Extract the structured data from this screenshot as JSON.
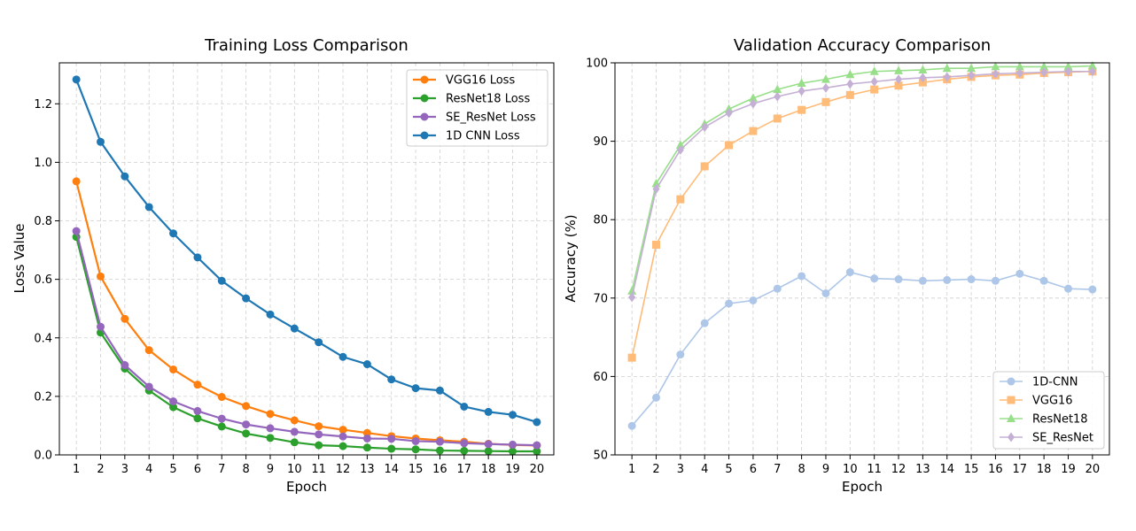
{
  "chart_data": [
    {
      "type": "line",
      "title": "Training Loss Comparison",
      "xlabel": "Epoch",
      "ylabel": "Loss Value",
      "x": [
        1,
        2,
        3,
        4,
        5,
        6,
        7,
        8,
        9,
        10,
        11,
        12,
        13,
        14,
        15,
        16,
        17,
        18,
        19,
        20
      ],
      "xlim": [
        0.3,
        20.7
      ],
      "ylim": [
        0,
        1.34
      ],
      "yticks": [
        0.0,
        0.2,
        0.4,
        0.6,
        0.8,
        1.0,
        1.2
      ],
      "ytick_labels": [
        "0.0",
        "0.2",
        "0.4",
        "0.6",
        "0.8",
        "1.0",
        "1.2"
      ],
      "grid": true,
      "legend_position": "top-right",
      "series": [
        {
          "name": "VGG16 Loss",
          "color": "#ff7f0e",
          "marker": "circle",
          "values": [
            0.935,
            0.61,
            0.465,
            0.358,
            0.292,
            0.24,
            0.198,
            0.167,
            0.14,
            0.118,
            0.098,
            0.086,
            0.075,
            0.064,
            0.056,
            0.05,
            0.045,
            0.038,
            0.034,
            0.032
          ]
        },
        {
          "name": "ResNet18 Loss",
          "color": "#2ca02c",
          "marker": "circle",
          "values": [
            0.745,
            0.418,
            0.295,
            0.22,
            0.163,
            0.125,
            0.097,
            0.073,
            0.058,
            0.043,
            0.033,
            0.03,
            0.025,
            0.021,
            0.019,
            0.015,
            0.014,
            0.013,
            0.012,
            0.012
          ]
        },
        {
          "name": "SE_ResNet Loss",
          "color": "#9467bd",
          "marker": "circle",
          "values": [
            0.765,
            0.438,
            0.307,
            0.233,
            0.183,
            0.15,
            0.124,
            0.104,
            0.091,
            0.079,
            0.07,
            0.063,
            0.056,
            0.055,
            0.047,
            0.045,
            0.04,
            0.037,
            0.035,
            0.033
          ]
        },
        {
          "name": "1D CNN Loss",
          "color": "#1f77b4",
          "marker": "circle",
          "values": [
            1.283,
            1.07,
            0.952,
            0.847,
            0.757,
            0.675,
            0.595,
            0.535,
            0.48,
            0.432,
            0.385,
            0.335,
            0.31,
            0.258,
            0.228,
            0.22,
            0.165,
            0.147,
            0.137,
            0.112
          ]
        }
      ]
    },
    {
      "type": "line",
      "title": "Validation Accuracy Comparison",
      "xlabel": "Epoch",
      "ylabel": "Accuracy (%)",
      "x": [
        1,
        2,
        3,
        4,
        5,
        6,
        7,
        8,
        9,
        10,
        11,
        12,
        13,
        14,
        15,
        16,
        17,
        18,
        19,
        20
      ],
      "xlim": [
        0.3,
        20.7
      ],
      "ylim": [
        50,
        100
      ],
      "yticks": [
        50,
        60,
        70,
        80,
        90,
        100
      ],
      "ytick_labels": [
        "50",
        "60",
        "70",
        "80",
        "90",
        "100"
      ],
      "grid": true,
      "legend_position": "bottom-right",
      "series": [
        {
          "name": "1D-CNN",
          "color": "#aec7e8",
          "marker": "circle",
          "values": [
            53.7,
            57.3,
            62.8,
            66.8,
            69.3,
            69.7,
            71.2,
            72.8,
            70.6,
            73.3,
            72.5,
            72.4,
            72.2,
            72.3,
            72.4,
            72.2,
            73.1,
            72.2,
            71.2,
            71.1
          ]
        },
        {
          "name": "VGG16",
          "color": "#ffbb78",
          "marker": "square",
          "values": [
            62.4,
            76.8,
            82.6,
            86.8,
            89.5,
            91.3,
            92.9,
            94.0,
            95.0,
            95.9,
            96.6,
            97.1,
            97.5,
            97.9,
            98.2,
            98.4,
            98.5,
            98.7,
            98.8,
            98.9
          ]
        },
        {
          "name": "ResNet18",
          "color": "#98df8a",
          "marker": "triangle",
          "values": [
            70.9,
            84.6,
            89.5,
            92.2,
            94.1,
            95.5,
            96.6,
            97.4,
            97.9,
            98.5,
            98.9,
            99.0,
            99.1,
            99.3,
            99.3,
            99.5,
            99.5,
            99.5,
            99.5,
            99.6
          ]
        },
        {
          "name": "SE_ResNet",
          "color": "#c5b0d5",
          "marker": "diamond",
          "values": [
            70.1,
            83.9,
            88.9,
            91.8,
            93.6,
            94.8,
            95.7,
            96.4,
            96.8,
            97.3,
            97.6,
            97.9,
            98.1,
            98.2,
            98.4,
            98.6,
            98.7,
            98.8,
            98.9,
            98.9
          ]
        }
      ]
    }
  ]
}
